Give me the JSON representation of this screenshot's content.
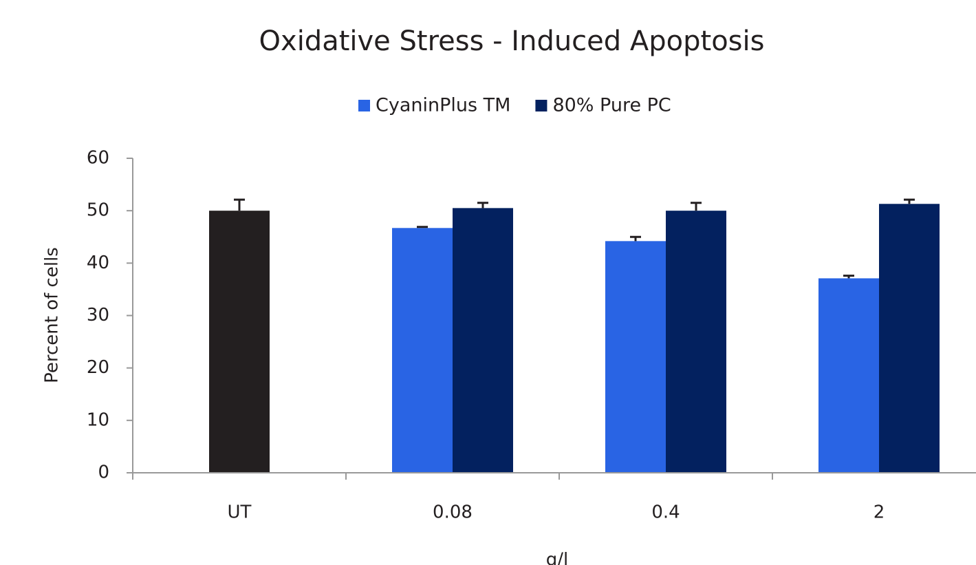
{
  "chart_data": {
    "type": "bar",
    "title": "Oxidative Stress - Induced Apoptosis",
    "x_label": "g/l",
    "y_label": "Percent of cells",
    "categories": [
      "UT",
      "0.08",
      "0.4",
      "2"
    ],
    "series": [
      {
        "color": "#231f20",
        "values": [
          50,
          null,
          null,
          null
        ],
        "errors": [
          2.1,
          null,
          null,
          null
        ]
      },
      {
        "name": "CyaninPlus TM",
        "color": "#2964e4",
        "values": [
          null,
          46.7,
          44.2,
          37.1
        ],
        "errors": [
          null,
          0.2,
          0.8,
          0.5
        ]
      },
      {
        "name": "80% Pure PC",
        "color": "#03215f",
        "values": [
          null,
          50.5,
          50,
          51.3
        ],
        "errors": [
          null,
          1.0,
          1.5,
          0.8
        ]
      }
    ],
    "ylim": [
      0,
      60
    ],
    "yticks": [
      0,
      10,
      20,
      30,
      40,
      50,
      60
    ],
    "legend": "top"
  }
}
